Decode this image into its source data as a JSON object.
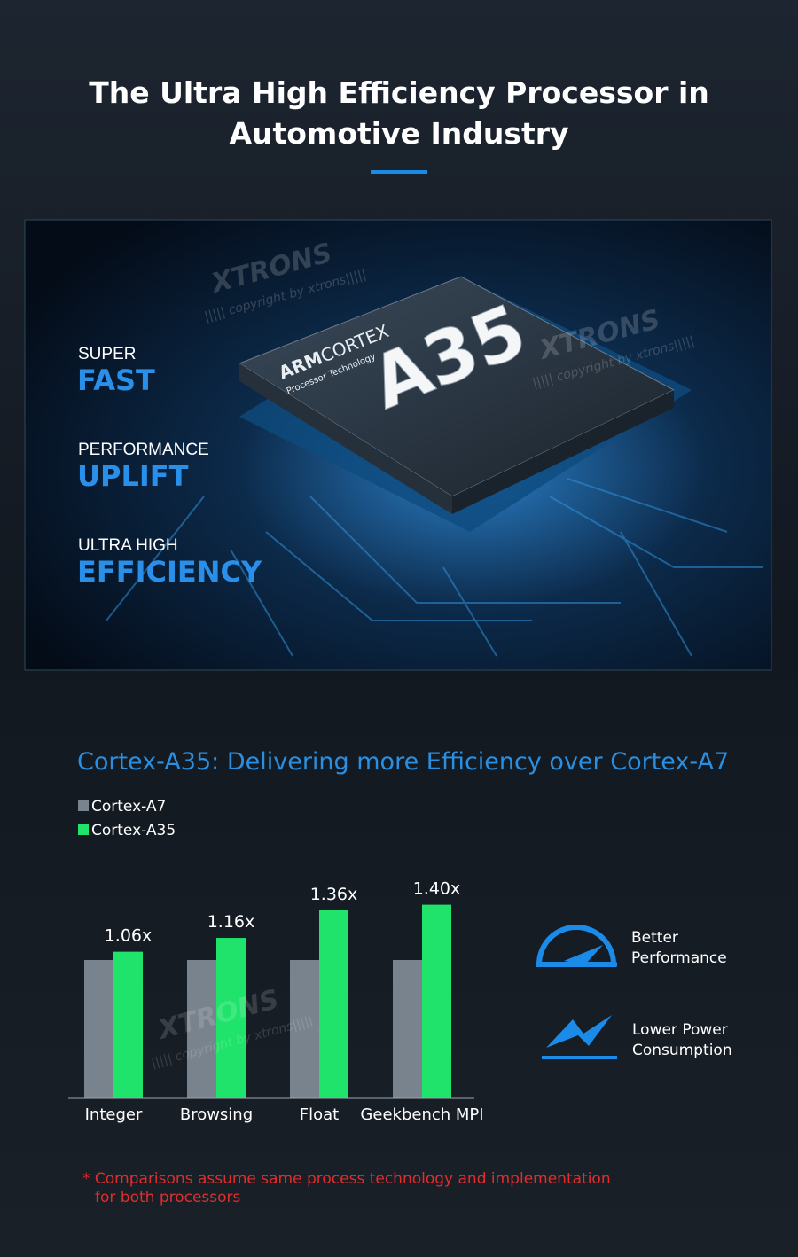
{
  "header": {
    "title_lines": [
      "The Ultra High Efficiency Processor in",
      "Automotive Industry"
    ]
  },
  "banner": {
    "features": [
      {
        "small": "SUPER",
        "big": "FAST"
      },
      {
        "small": "PERFORMANCE",
        "big": "UPLIFT"
      },
      {
        "small": "ULTRA HIGH",
        "big": "EFFICIENCY"
      }
    ],
    "chip": {
      "brand_bold": "ARM",
      "brand": "CORTEX",
      "sub": "Processor Technology",
      "model": "A35"
    },
    "watermark": {
      "logo": "XTRONS",
      "text": "||||| copyright by xtrons|||||"
    }
  },
  "chart_data": {
    "type": "bar",
    "title": "Cortex-A35: Delivering more Efficiency over Cortex-A7",
    "categories": [
      "Integer",
      "Browsing",
      "Float",
      "Geekbench MPI"
    ],
    "series": [
      {
        "name": "Cortex-A7",
        "color": "#78838d",
        "values": [
          1,
          1,
          1,
          1
        ]
      },
      {
        "name": "Cortex-A35",
        "color": "#1fe36a",
        "values": [
          1.06,
          1.16,
          1.36,
          1.4
        ],
        "value_labels": [
          "1.06x",
          "1.16x",
          "1.36x",
          "1.40x"
        ]
      }
    ]
  },
  "benefits": [
    [
      "Better",
      "Performance"
    ],
    [
      "Lower Power",
      "Consumption"
    ]
  ],
  "footnote": [
    "* Comparisons assume same process technology and implementation",
    "for both processors"
  ]
}
